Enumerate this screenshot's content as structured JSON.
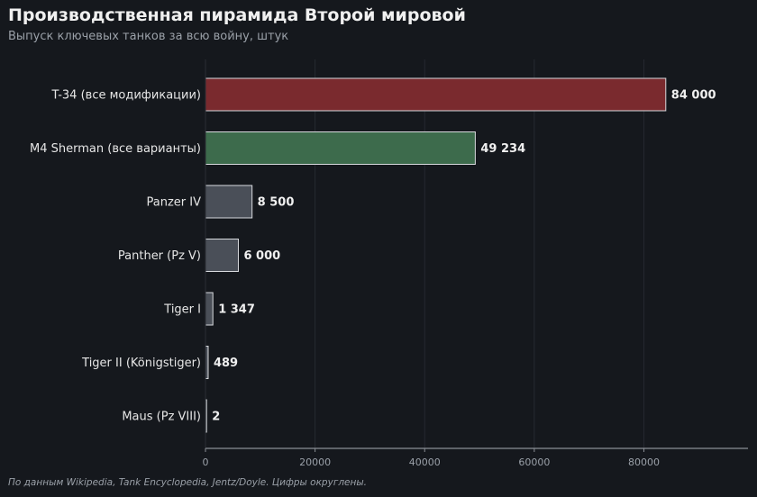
{
  "chart_data": {
    "type": "bar",
    "orientation": "horizontal",
    "title": "Производственная пирамида Второй мировой",
    "subtitle": "Выпуск ключевых танков за всю войну, штук",
    "categories": [
      "T-34 (все модификации)",
      "M4 Sherman (все варианты)",
      "Panzer IV",
      "Panther (Pz V)",
      "Tiger I",
      "Tiger II (Königstiger)",
      "Maus (Pz VIII)"
    ],
    "values": [
      84000,
      49234,
      8500,
      6000,
      1347,
      489,
      2
    ],
    "value_labels": [
      "84 000",
      "49 234",
      "8 500",
      "6 000",
      "1 347",
      "489",
      "2"
    ],
    "bar_colors": [
      "#7a2a2e",
      "#3d6b4c",
      "#4a4f58",
      "#4a4f58",
      "#4a4f58",
      "#4a4f58",
      "#4a4f58"
    ],
    "xlim": [
      0,
      99000
    ],
    "xticks": [
      0,
      20000,
      40000,
      60000,
      80000
    ],
    "xtick_labels": [
      "0",
      "20000",
      "40000",
      "60000",
      "80000"
    ],
    "grid": "vertical",
    "legend": "none",
    "footnote": "По данным Wikipedia, Tank Encyclopedia, Jentz/Doyle. Цифры округлены."
  }
}
